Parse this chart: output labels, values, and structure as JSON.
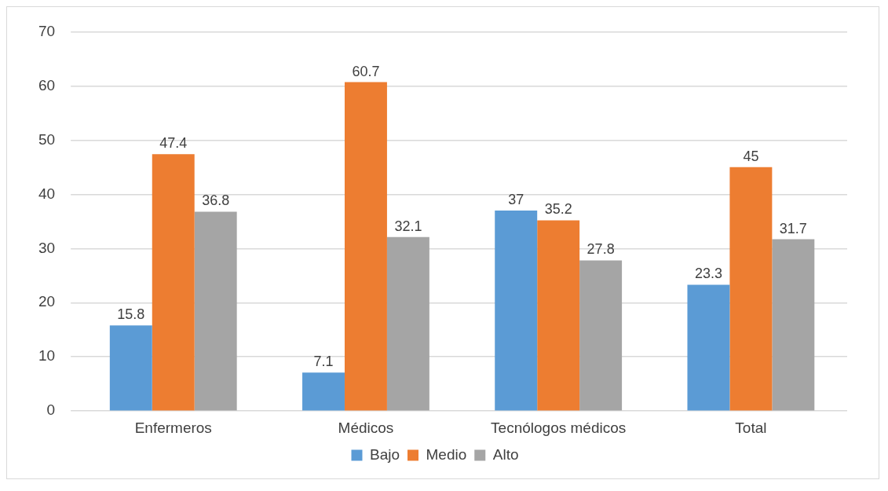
{
  "chart_data": {
    "type": "bar",
    "categories": [
      "Enfermeros",
      "Médicos",
      "Tecnólogos médicos",
      "Total"
    ],
    "series": [
      {
        "name": "Bajo",
        "color": "#5b9bd5",
        "values": [
          15.8,
          7.1,
          37,
          23.3
        ]
      },
      {
        "name": "Medio",
        "color": "#ed7d31",
        "values": [
          47.4,
          60.7,
          35.2,
          45
        ]
      },
      {
        "name": "Alto",
        "color": "#a5a5a5",
        "values": [
          36.8,
          32.1,
          27.8,
          31.7
        ]
      }
    ],
    "ylim": [
      0,
      70
    ],
    "yticks": [
      0,
      10,
      20,
      30,
      40,
      50,
      60,
      70
    ],
    "grid": "y",
    "legend": "bottom",
    "data_labels": true
  }
}
